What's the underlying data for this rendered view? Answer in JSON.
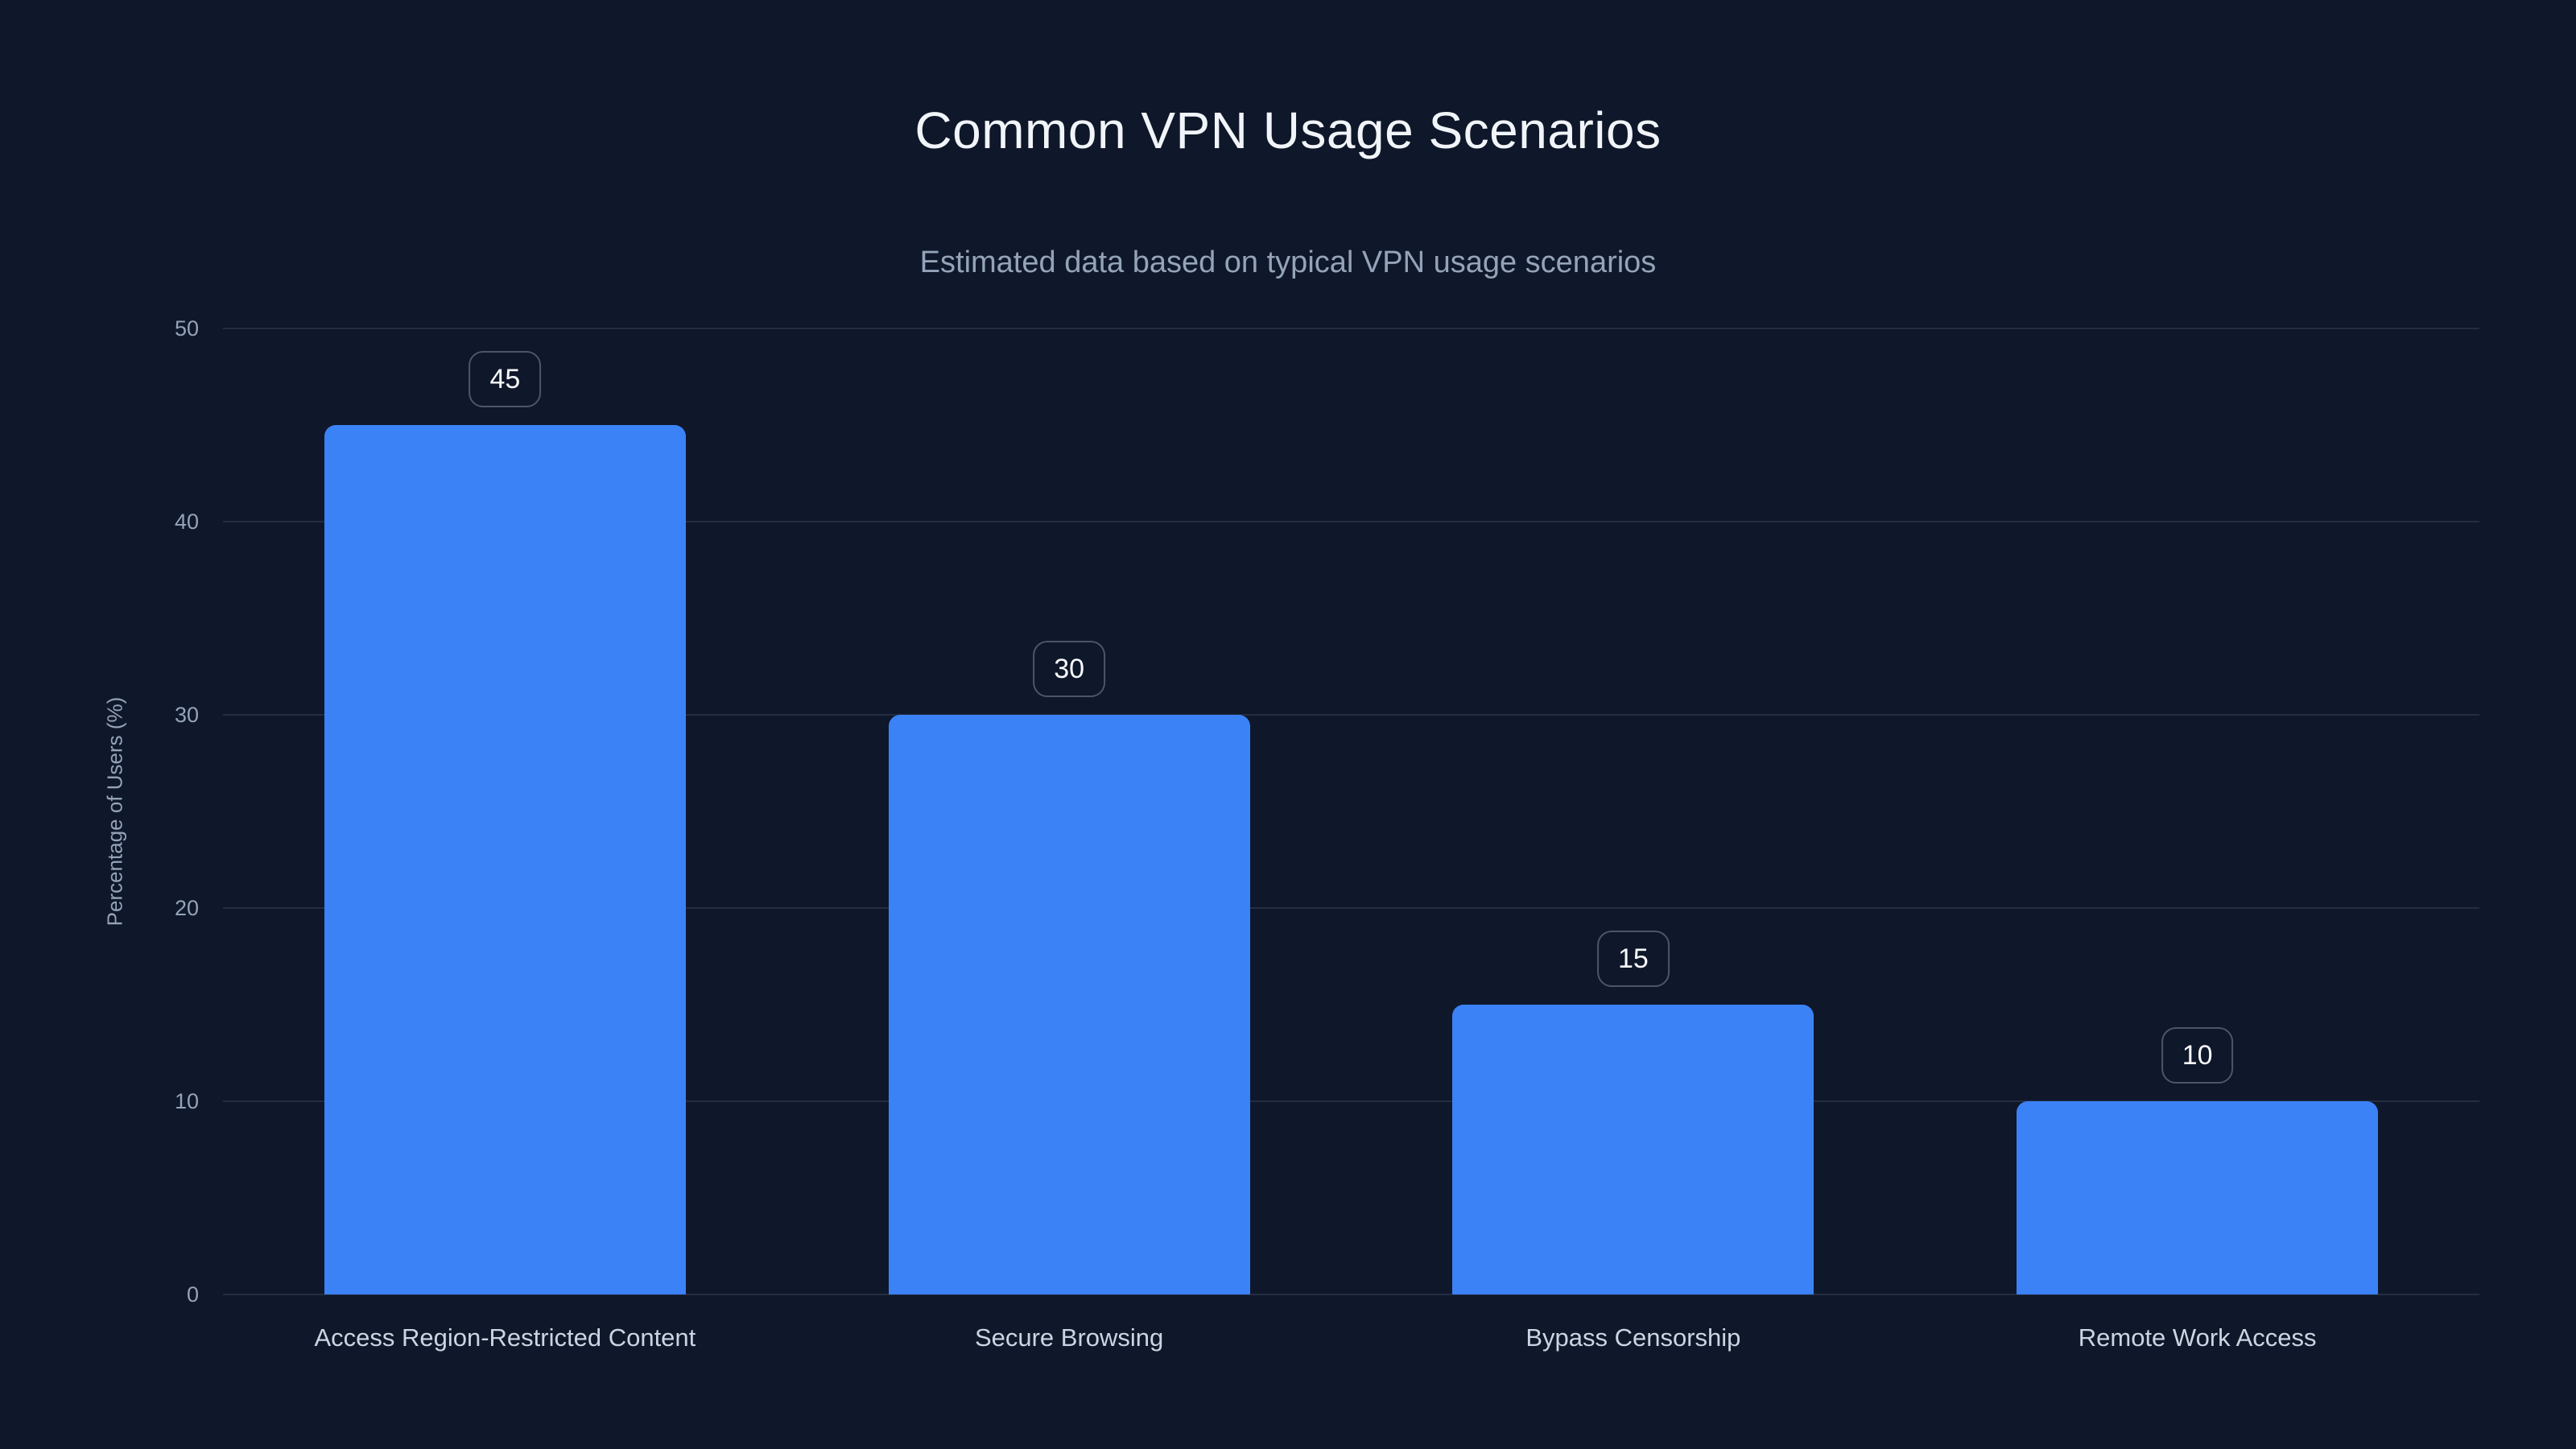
{
  "page": {
    "background": "#0f172a"
  },
  "header": {
    "title": "Common VPN Usage Scenarios",
    "subtitle": "Estimated data based on typical VPN usage scenarios"
  },
  "chart_data": {
    "type": "bar",
    "title": "Common VPN Usage Scenarios",
    "subtitle": "Estimated data based on typical VPN usage scenarios",
    "categories": [
      "Access Region-Restricted Content",
      "Secure Browsing",
      "Bypass Censorship",
      "Remote Work Access"
    ],
    "values": [
      45,
      30,
      15,
      10
    ],
    "value_labels": [
      "45",
      "30",
      "15",
      "10"
    ],
    "xlabel": "",
    "ylabel": "Percentage of Users (%)",
    "ylim": [
      0,
      50
    ],
    "yticks": [
      0,
      10,
      20,
      30,
      40,
      50
    ],
    "grid": "horizontal",
    "legend": "none",
    "colors": {
      "background": "#0f172a",
      "bar": "#3b82f6",
      "gridline": "rgba(148,163,184,0.16)",
      "tick_text": "#94a3b8",
      "category_text": "#cbd5e1",
      "title_text": "#f1f5f9",
      "subtitle_text": "#94a3b8",
      "badge_border": "rgba(148,163,184,0.45)",
      "badge_text": "#f8fafc"
    }
  }
}
